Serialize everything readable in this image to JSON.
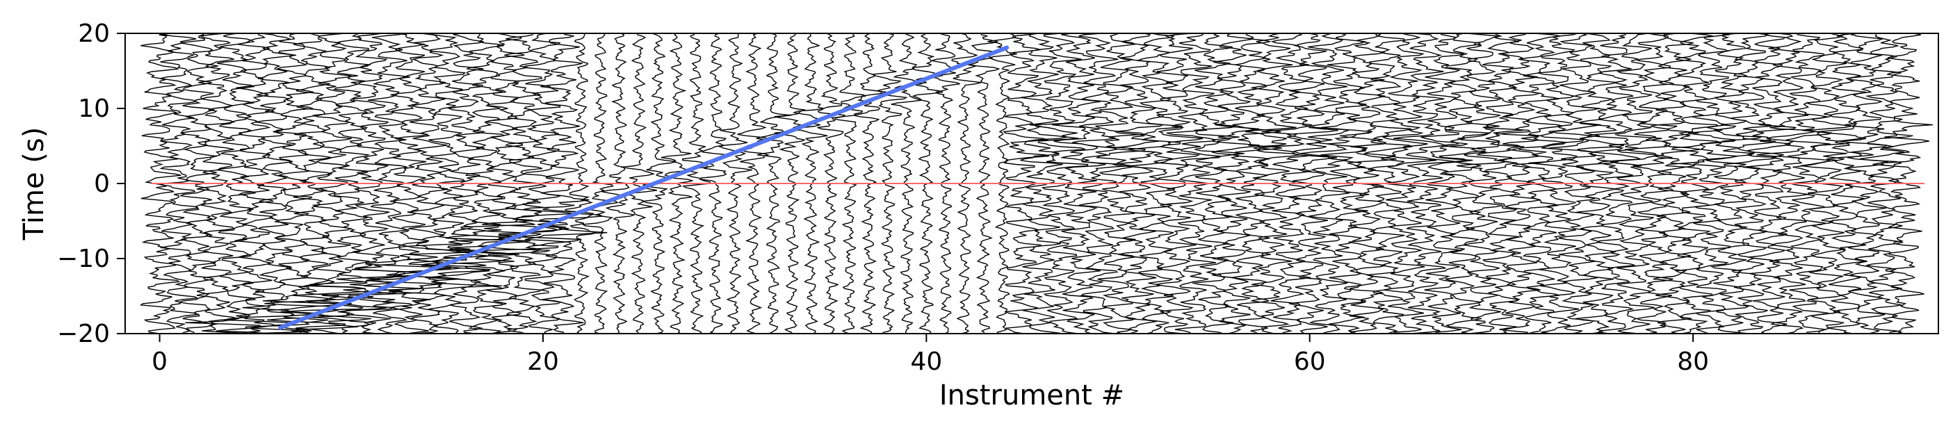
{
  "chart_data": {
    "type": "line",
    "title": "",
    "xlabel": "Instrument #",
    "ylabel": "Time (s)",
    "xlim": [
      -1.8,
      92.8
    ],
    "ylim": [
      -20,
      20
    ],
    "x_ticks": [
      0,
      20,
      40,
      60,
      80
    ],
    "y_ticks": [
      -20,
      -10,
      0,
      10,
      20
    ],
    "grid": false,
    "n_traces": 92,
    "trace_color": "#000000",
    "reference_line": {
      "y": 0,
      "color": "#ff6666"
    },
    "fit_line": {
      "x": [
        6.3,
        44.2
      ],
      "y": [
        -19.2,
        18.1
      ],
      "color": "#5577ee"
    },
    "coherent_arrival_slope_s_per_instrument": 0.985
  }
}
